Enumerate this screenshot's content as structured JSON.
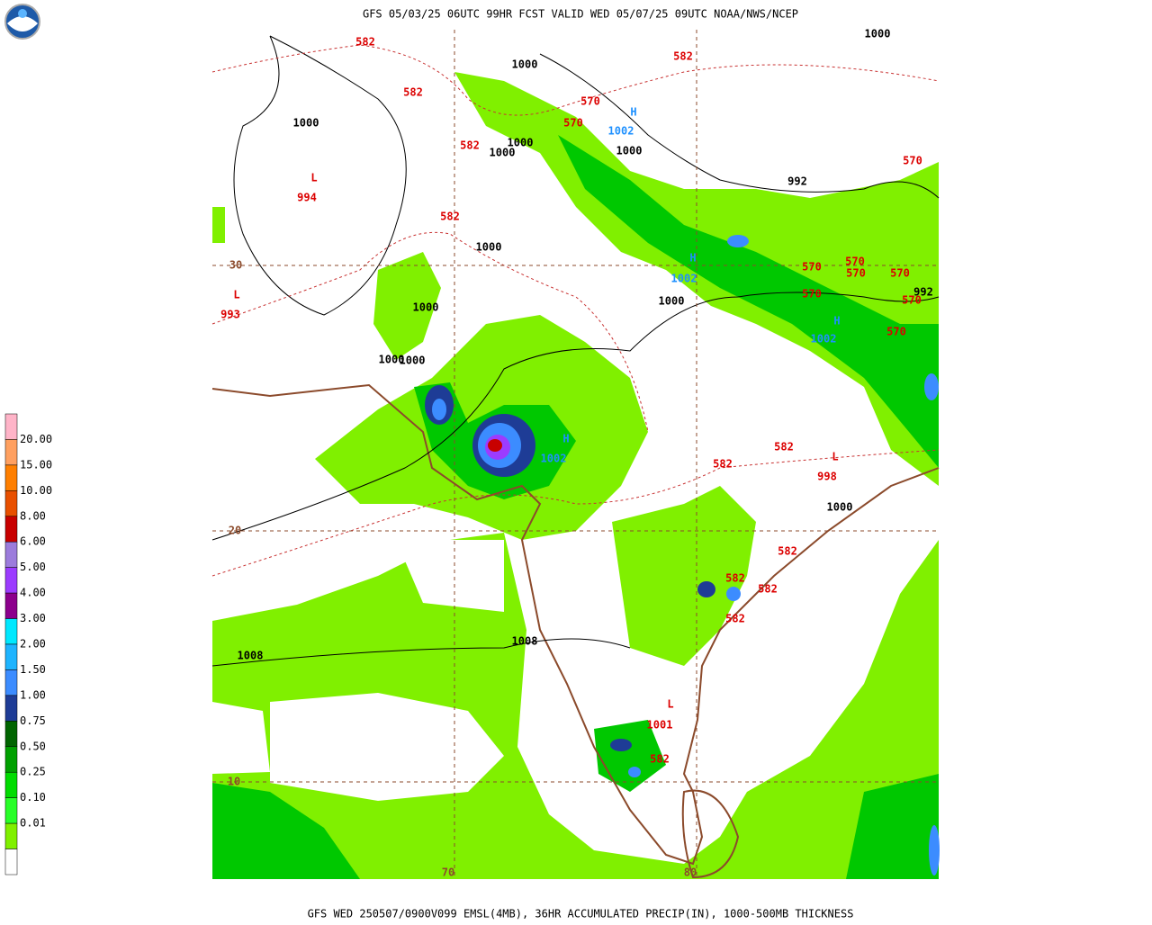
{
  "header": {
    "title": "GFS 05/03/25 06UTC 99HR FCST VALID WED 05/07/25 09UTC NOAA/NWS/NCEP"
  },
  "footer": {
    "caption": "GFS WED 250507/0900V099 EMSL(4MB), 36HR ACCUMULATED PRECIP(IN), 1000-500MB THICKNESS"
  },
  "legend": {
    "labels": [
      "20.00",
      "15.00",
      "10.00",
      "8.00",
      "6.00",
      "5.00",
      "4.00",
      "3.00",
      "2.00",
      "1.50",
      "1.00",
      "0.75",
      "0.50",
      "0.25",
      "0.10",
      "0.01"
    ],
    "colors": [
      "#ffb4c8",
      "#ffa060",
      "#ff7f00",
      "#e85000",
      "#c80000",
      "#9c7cdc",
      "#9c3cff",
      "#8c008c",
      "#00e8ff",
      "#1eb4ff",
      "#3c8cff",
      "#1e3c96",
      "#006400",
      "#00a000",
      "#00dc00",
      "#28ff28",
      "#80f000",
      "#ffffff"
    ]
  },
  "map": {
    "labels": [
      "582",
      "1000",
      "582",
      "1000",
      "582",
      "570",
      "H",
      "570",
      "1000",
      "1002",
      "582",
      "1000",
      "1000",
      "1000",
      "570",
      "L",
      "994",
      "992",
      "582",
      "1000",
      "30",
      "570",
      "570",
      "570",
      "570",
      "570",
      "570",
      "992",
      "L",
      "993",
      "1000",
      "1000",
      "H",
      "1002",
      "H",
      "1002",
      "570",
      "1000",
      "1000",
      "582",
      "L",
      "998",
      "582",
      "H",
      "1002",
      "1000",
      "20",
      "582",
      "582",
      "582",
      "582",
      "1008",
      "1008",
      "L",
      "1001",
      "582",
      "10",
      "70",
      "80"
    ]
  }
}
